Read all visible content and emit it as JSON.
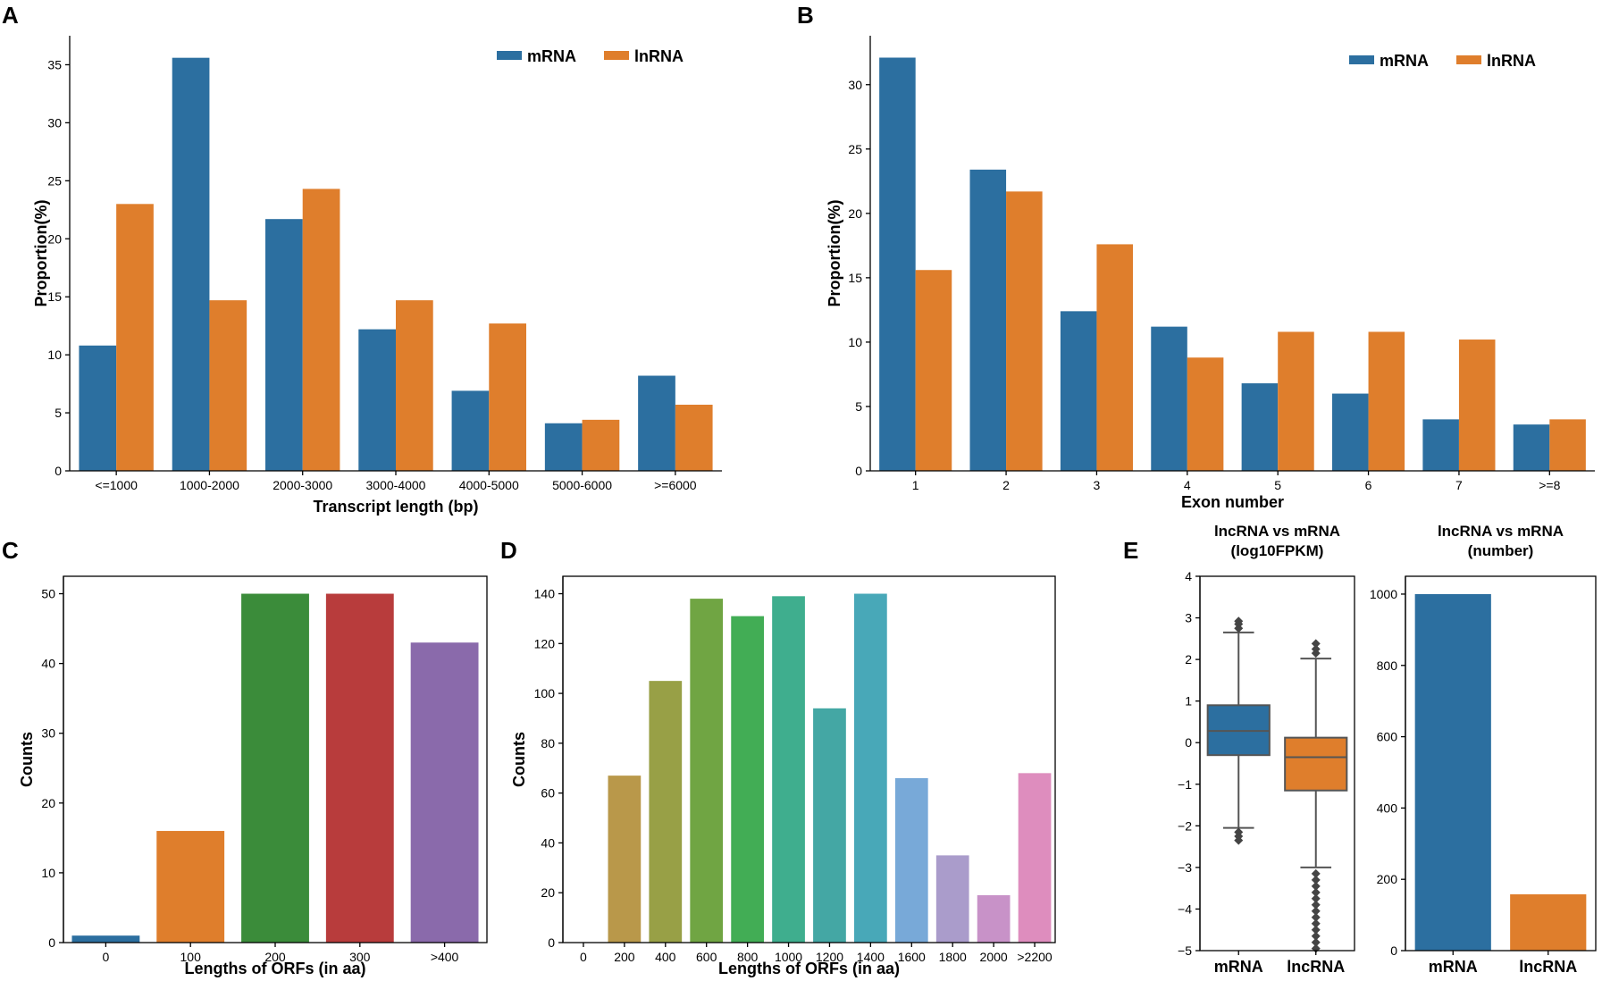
{
  "colors": {
    "mrna": "#2c6fa0",
    "lnrna": "#df7e2c",
    "c_palette": [
      "#2c6fa0",
      "#df7e2c",
      "#3b8c3a",
      "#b83c3c",
      "#8a6aab"
    ],
    "d_palette": [
      "#dd8955",
      "#b9984a",
      "#98a046",
      "#70a543",
      "#42ad55",
      "#3fae8e",
      "#44a7a4",
      "#48a8b8",
      "#78a9d8",
      "#aa9ccb",
      "#c892c8",
      "#de8dbe"
    ],
    "box_line": "#555555"
  },
  "chart_data": [
    {
      "id": "A",
      "panel_label": "A",
      "type": "bar",
      "categories": [
        "<=1000",
        "1000-2000",
        "2000-3000",
        "3000-4000",
        "4000-5000",
        "5000-6000",
        ">=6000"
      ],
      "series": [
        {
          "name": "mRNA",
          "values": [
            10.8,
            35.6,
            21.7,
            12.2,
            6.9,
            4.1,
            8.2
          ]
        },
        {
          "name": "lnRNA",
          "values": [
            23.0,
            14.7,
            24.3,
            14.7,
            12.7,
            4.4,
            5.7
          ]
        }
      ],
      "xlabel": "Transcript length (bp)",
      "ylabel": "Proportion(%)",
      "ylim": [
        0,
        37.5
      ],
      "yticks": [
        0,
        5,
        10,
        15,
        20,
        25,
        30,
        35
      ],
      "legend": "top-right"
    },
    {
      "id": "B",
      "panel_label": "B",
      "type": "bar",
      "categories": [
        "1",
        "2",
        "3",
        "4",
        "5",
        "6",
        "7",
        ">=8"
      ],
      "series": [
        {
          "name": "mRNA",
          "values": [
            32.1,
            23.4,
            12.4,
            11.2,
            6.8,
            6.0,
            4.0,
            3.6
          ]
        },
        {
          "name": "lnRNA",
          "values": [
            15.6,
            21.7,
            17.6,
            8.8,
            10.8,
            10.8,
            10.2,
            4.0
          ]
        }
      ],
      "xlabel": "Exon number",
      "ylabel": "Proportion(%)",
      "ylim": [
        0,
        33.8
      ],
      "yticks": [
        0,
        5,
        10,
        15,
        20,
        25,
        30
      ],
      "legend": "top-right"
    },
    {
      "id": "C",
      "panel_label": "C",
      "type": "bar",
      "categories": [
        "0",
        "100",
        "200",
        "300",
        ">400"
      ],
      "values": [
        1,
        16,
        50,
        50,
        43
      ],
      "xlabel": "Lengths of ORFs (in aa)",
      "ylabel": "Counts",
      "ylim": [
        0,
        52.5
      ],
      "yticks": [
        0,
        10,
        20,
        30,
        40,
        50
      ]
    },
    {
      "id": "D",
      "panel_label": "D",
      "type": "bar",
      "categories": [
        "0",
        "200",
        "400",
        "600",
        "800",
        "1000",
        "1200",
        "1400",
        "1600",
        "1800",
        "2000",
        ">2200"
      ],
      "values": [
        0,
        67,
        105,
        138,
        131,
        139,
        94,
        140,
        66,
        35,
        19,
        68
      ],
      "xlabel": "Lengths of ORFs (in aa)",
      "ylabel": "Counts",
      "ylim": [
        0,
        147
      ],
      "yticks": [
        0,
        20,
        40,
        60,
        80,
        100,
        120,
        140
      ]
    },
    {
      "id": "E1",
      "panel_label": "E",
      "type": "box",
      "title_lines": [
        "lncRNA vs mRNA",
        "(log10FPKM)"
      ],
      "categories": [
        "mRNA",
        "lncRNA"
      ],
      "boxes": [
        {
          "name": "mRNA",
          "whisker_low": -2.05,
          "q1": -0.3,
          "median": 0.28,
          "q3": 0.9,
          "whisker_high": 2.65,
          "outliers": [
            -2.15,
            -2.25,
            -2.35,
            2.75,
            2.85,
            2.92
          ]
        },
        {
          "name": "lncRNA",
          "whisker_low": -3.0,
          "q1": -1.15,
          "median": -0.35,
          "q3": 0.12,
          "whisker_high": 2.02,
          "outliers": [
            2.15,
            2.25,
            2.38,
            -3.15,
            -3.3,
            -3.45,
            -3.6,
            -3.75,
            -3.9,
            -4.05,
            -4.2,
            -4.35,
            -4.5,
            -4.65,
            -4.8,
            -4.95
          ]
        }
      ],
      "ylim": [
        -5,
        4
      ],
      "yticks": [
        -5,
        -4,
        -3,
        -2,
        -1,
        0,
        1,
        2,
        3,
        4
      ]
    },
    {
      "id": "E2",
      "type": "bar",
      "title_lines": [
        "lncRNA vs mRNA",
        "(number)"
      ],
      "categories": [
        "mRNA",
        "lncRNA"
      ],
      "values": [
        1000,
        158
      ],
      "ylim": [
        0,
        1050
      ],
      "yticks": [
        0,
        200,
        400,
        600,
        800,
        1000
      ]
    }
  ]
}
